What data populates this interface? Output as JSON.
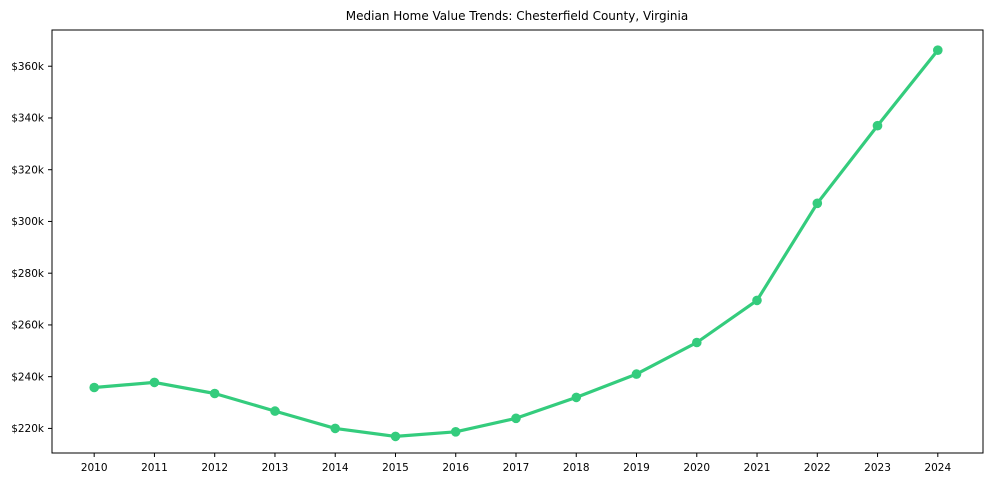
{
  "page": {
    "background_color": "#ffffff"
  },
  "chart_data": {
    "type": "line",
    "title": "Median Home Value Trends: Chesterfield County, Virginia",
    "xlabel": "",
    "ylabel": "",
    "x": [
      2010,
      2011,
      2012,
      2013,
      2014,
      2015,
      2016,
      2017,
      2018,
      2019,
      2020,
      2021,
      2022,
      2023,
      2024
    ],
    "x_tick_labels": [
      "2010",
      "2011",
      "2012",
      "2013",
      "2014",
      "2015",
      "2016",
      "2017",
      "2018",
      "2019",
      "2020",
      "2021",
      "2022",
      "2023",
      "2024"
    ],
    "series": [
      {
        "name": "Median Home Value",
        "values": [
          235800,
          237800,
          233500,
          226700,
          220000,
          216900,
          218700,
          223900,
          232000,
          241000,
          253200,
          269500,
          307000,
          337000,
          366200
        ],
        "color": "#34cc7d",
        "marker": "circle",
        "marker_size": 4.8,
        "line_width": 3.2
      }
    ],
    "y_ticks": {
      "values": [
        220000,
        240000,
        260000,
        280000,
        300000,
        320000,
        340000,
        360000
      ],
      "labels": [
        "$220k",
        "$240k",
        "$260k",
        "$280k",
        "$300k",
        "$320k",
        "$340k",
        "$360k"
      ]
    },
    "xlim": [
      2009.3,
      2024.75
    ],
    "ylim": [
      210500,
      374000
    ],
    "grid": false,
    "legend": null,
    "axis_color": "#000000",
    "plot_background": "#ffffff"
  }
}
